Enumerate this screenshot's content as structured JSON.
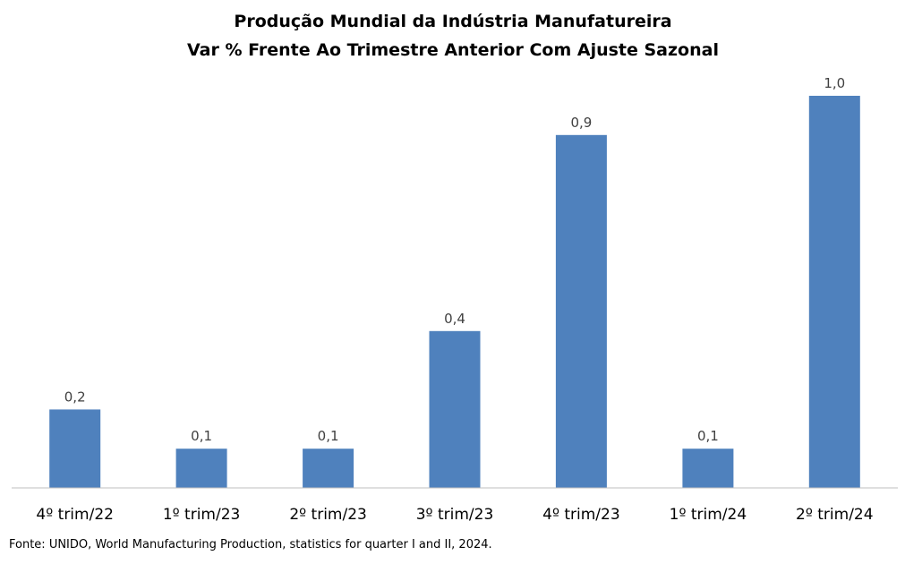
{
  "chart_data": {
    "type": "bar",
    "title_lines": [
      "Produção Mundial da Indústria Manufatureira",
      "Var % Frente Ao Trimestre Anterior Com Ajuste Sazonal"
    ],
    "categories": [
      "4º trim/22",
      "1º trim/23",
      "2º trim/23",
      "3º trim/23",
      "4º trim/23",
      "1º trim/24",
      "2º trim/24"
    ],
    "values": [
      0.2,
      0.1,
      0.1,
      0.4,
      0.9,
      0.1,
      1.0
    ],
    "value_labels": [
      "0,2",
      "0,1",
      "0,1",
      "0,4",
      "0,9",
      "0,1",
      "1,0"
    ],
    "ylim": [
      0,
      1.0
    ],
    "grid": false,
    "xlabel": "",
    "ylabel": "",
    "bar_color": "#4F81BD",
    "axis_color": "#BFBFBF"
  },
  "source_note": "Fonte: UNIDO, World Manufacturing Production,  statistics for quarter  I and II, 2024."
}
